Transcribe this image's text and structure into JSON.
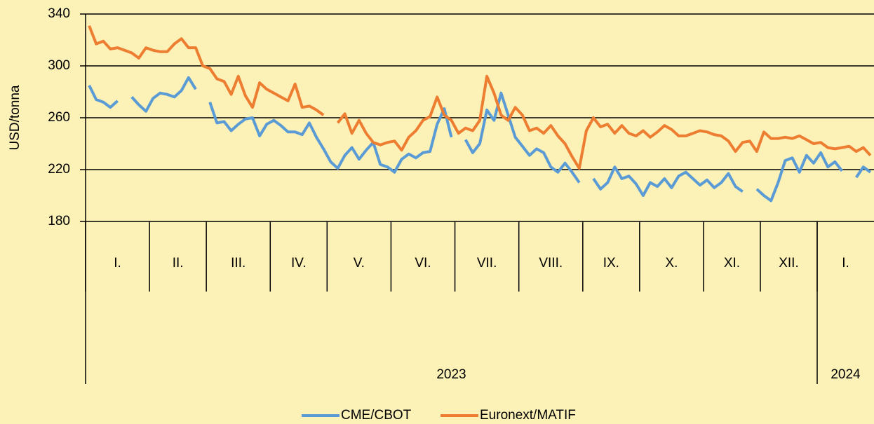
{
  "chart_data": {
    "type": "line",
    "ylabel": "USD/tonna",
    "month_labels": [
      "I.",
      "II.",
      "III.",
      "IV.",
      "V.",
      "VI.",
      "VII.",
      "VIII.",
      "IX.",
      "X.",
      "XI.",
      "XII.",
      "I."
    ],
    "year_labels": [
      "2023",
      "2024"
    ],
    "x": [
      "2023-01",
      "2023-01",
      "2023-01",
      "2023-01",
      "2023-01",
      "2023-01",
      "2023-01",
      "2023-01",
      "2023-01",
      "2023-02",
      "2023-02",
      "2023-02",
      "2023-02",
      "2023-02",
      "2023-02",
      "2023-02",
      "2023-02",
      "2023-03",
      "2023-03",
      "2023-03",
      "2023-03",
      "2023-03",
      "2023-03",
      "2023-03",
      "2023-03",
      "2023-03",
      "2023-04",
      "2023-04",
      "2023-04",
      "2023-04",
      "2023-04",
      "2023-04",
      "2023-04",
      "2023-04",
      "2023-05",
      "2023-05",
      "2023-05",
      "2023-05",
      "2023-05",
      "2023-05",
      "2023-05",
      "2023-05",
      "2023-05",
      "2023-06",
      "2023-06",
      "2023-06",
      "2023-06",
      "2023-06",
      "2023-06",
      "2023-06",
      "2023-06",
      "2023-06",
      "2023-07",
      "2023-07",
      "2023-07",
      "2023-07",
      "2023-07",
      "2023-07",
      "2023-07",
      "2023-07",
      "2023-07",
      "2023-08",
      "2023-08",
      "2023-08",
      "2023-08",
      "2023-08",
      "2023-08",
      "2023-08",
      "2023-08",
      "2023-08",
      "2023-09",
      "2023-09",
      "2023-09",
      "2023-09",
      "2023-09",
      "2023-09",
      "2023-09",
      "2023-09",
      "2023-10",
      "2023-10",
      "2023-10",
      "2023-10",
      "2023-10",
      "2023-10",
      "2023-10",
      "2023-10",
      "2023-10",
      "2023-11",
      "2023-11",
      "2023-11",
      "2023-11",
      "2023-11",
      "2023-11",
      "2023-11",
      "2023-11",
      "2023-12",
      "2023-12",
      "2023-12",
      "2023-12",
      "2023-12",
      "2023-12",
      "2023-12",
      "2023-12",
      "2024-01",
      "2024-01",
      "2024-01",
      "2024-01",
      "2024-01",
      "2024-01",
      "2024-01",
      "2024-01"
    ],
    "series": [
      {
        "name": "CME/CBOT",
        "color": "#5b9bd5",
        "values": [
          285,
          274,
          272,
          268,
          273,
          null,
          276,
          270,
          265,
          275,
          279,
          278,
          276,
          281,
          291,
          282,
          null,
          272,
          256,
          257,
          250,
          255,
          259,
          260,
          246,
          255,
          258,
          254,
          249,
          249,
          247,
          256,
          245,
          236,
          226,
          221,
          231,
          237,
          228,
          235,
          241,
          224,
          222,
          218,
          228,
          232,
          229,
          233,
          234,
          255,
          267,
          245,
          null,
          243,
          233,
          240,
          266,
          258,
          279,
          262,
          245,
          238,
          231,
          236,
          233,
          222,
          218,
          225,
          218,
          210,
          null,
          213,
          205,
          210,
          222,
          213,
          215,
          209,
          200,
          210,
          207,
          213,
          206,
          215,
          218,
          213,
          208,
          212,
          206,
          210,
          217,
          207,
          203,
          null,
          205,
          200,
          196,
          210,
          227,
          229,
          218,
          231,
          225,
          233,
          222,
          226,
          219,
          null,
          214,
          222,
          218
        ]
      },
      {
        "name": "Euronext/MATIF",
        "color": "#ed7d31",
        "values": [
          331,
          317,
          319,
          313,
          314,
          312,
          310,
          306,
          314,
          312,
          311,
          311,
          317,
          321,
          314,
          314,
          300,
          298,
          290,
          288,
          278,
          292,
          277,
          268,
          287,
          282,
          279,
          276,
          273,
          286,
          268,
          269,
          266,
          262,
          null,
          256,
          263,
          248,
          258,
          248,
          241,
          239,
          241,
          242,
          235,
          245,
          250,
          258,
          261,
          276,
          262,
          258,
          248,
          252,
          250,
          258,
          292,
          279,
          262,
          258,
          268,
          262,
          250,
          252,
          248,
          254,
          246,
          240,
          230,
          221,
          250,
          260,
          253,
          255,
          248,
          254,
          248,
          246,
          250,
          245,
          249,
          254,
          251,
          246,
          246,
          248,
          250,
          249,
          247,
          246,
          242,
          234,
          241,
          242,
          234,
          249,
          244,
          244,
          245,
          244,
          246,
          243,
          240,
          241,
          237,
          236,
          237,
          238,
          234,
          237,
          231
        ]
      }
    ],
    "ylim": [
      180,
      340
    ],
    "yticks": [
      180,
      220,
      260,
      300,
      340
    ],
    "grid": true,
    "legend": "bottom"
  }
}
